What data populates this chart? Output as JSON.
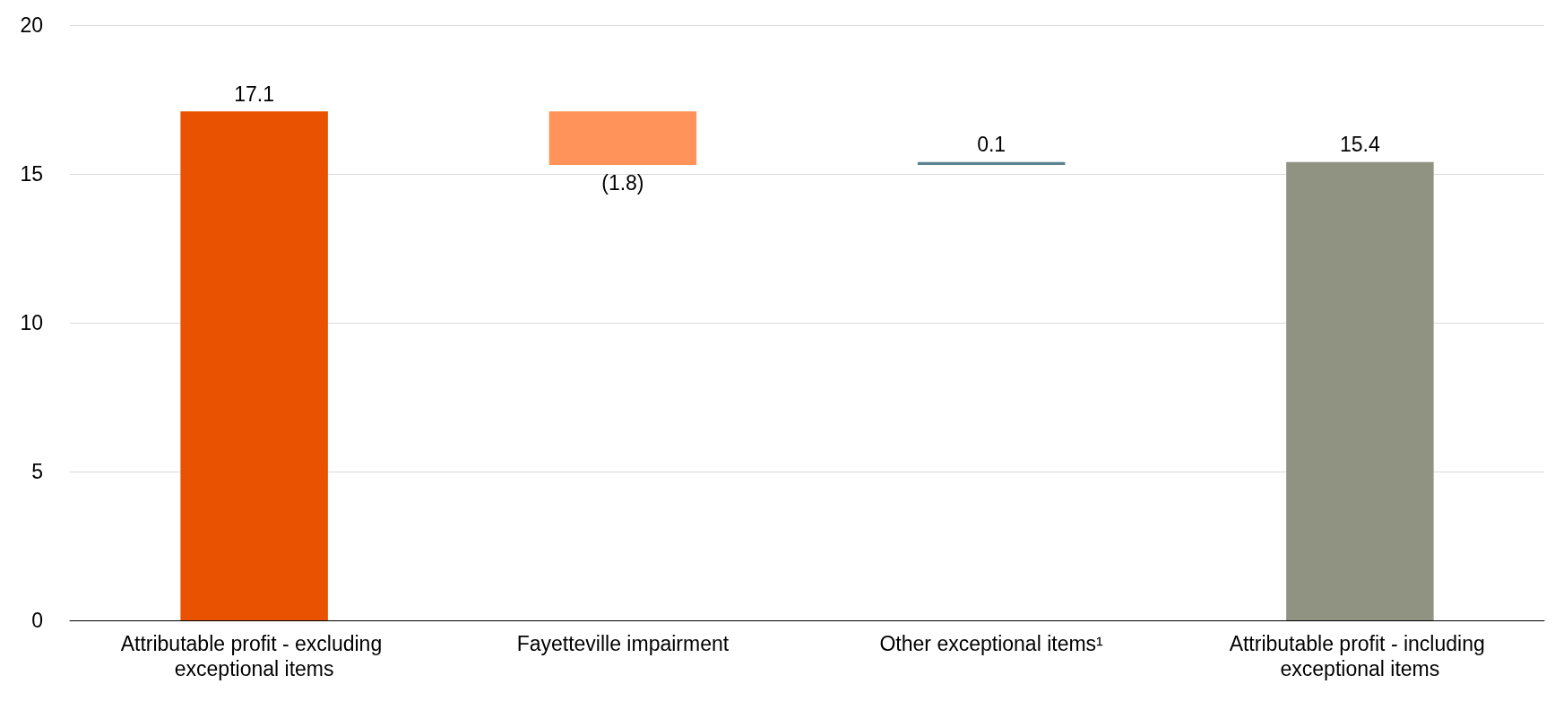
{
  "chart_data": {
    "type": "bar",
    "categories": [
      "Attributable profit - excluding exceptional items",
      "Fayetteville impairment",
      "Other exceptional items¹",
      "Attributable profit - including exceptional items"
    ],
    "values": [
      17.1,
      -1.8,
      0.1,
      15.4
    ],
    "base": [
      0,
      17.1,
      15.3,
      0
    ],
    "colors": [
      "#e85200",
      "#ff9359",
      "#5b8291",
      "#909282"
    ],
    "value_labels": [
      "17.1",
      "(1.8)",
      "0.1",
      "15.4"
    ],
    "ylim": [
      0,
      20
    ],
    "yticks": [
      0,
      5,
      10,
      15,
      20
    ],
    "grid": "y"
  }
}
